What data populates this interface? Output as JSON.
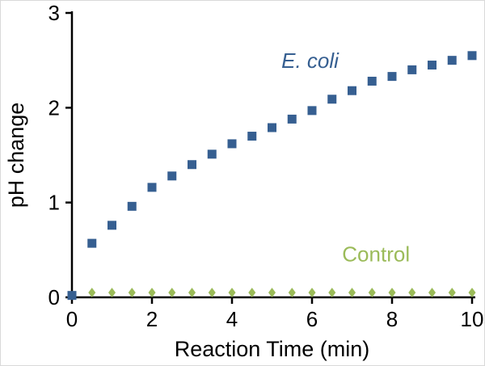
{
  "chart_data": {
    "type": "scatter",
    "title": "",
    "xlabel": "Reaction Time (min)",
    "ylabel": "pH change",
    "xlim": [
      0,
      10
    ],
    "ylim": [
      0,
      3
    ],
    "x_ticks": [
      0,
      2,
      4,
      6,
      8,
      10
    ],
    "y_ticks": [
      0,
      1,
      2,
      3
    ],
    "grid": false,
    "legend_position": "inline-annotations",
    "axis_color": "#000000",
    "series": [
      {
        "name": "E. coli",
        "marker": "square",
        "color": "#365F91",
        "annotation": {
          "text": "E. coli",
          "x": 5.95,
          "y": 2.42,
          "italic": true
        },
        "x": [
          0,
          0.5,
          1,
          1.5,
          2,
          2.5,
          3,
          3.5,
          4,
          4.5,
          5,
          5.5,
          6,
          6.5,
          7,
          7.5,
          8,
          8.5,
          9,
          9.5,
          10
        ],
        "y": [
          0.02,
          0.57,
          0.76,
          0.96,
          1.16,
          1.28,
          1.4,
          1.51,
          1.62,
          1.7,
          1.79,
          1.88,
          1.97,
          2.09,
          2.18,
          2.28,
          2.33,
          2.4,
          2.45,
          2.5,
          2.55
        ]
      },
      {
        "name": "Control",
        "marker": "diamond",
        "color": "#9BBB59",
        "annotation": {
          "text": "Control",
          "x": 7.6,
          "y": 0.38,
          "italic": false
        },
        "x": [
          0.5,
          1,
          1.5,
          2,
          2.5,
          3,
          3.5,
          4,
          4.5,
          5,
          5.5,
          6,
          6.5,
          7,
          7.5,
          8,
          8.5,
          9,
          9.5,
          10
        ],
        "y": [
          0.05,
          0.05,
          0.05,
          0.05,
          0.05,
          0.05,
          0.05,
          0.05,
          0.05,
          0.05,
          0.05,
          0.05,
          0.05,
          0.05,
          0.05,
          0.05,
          0.05,
          0.05,
          0.05,
          0.05
        ]
      }
    ]
  }
}
